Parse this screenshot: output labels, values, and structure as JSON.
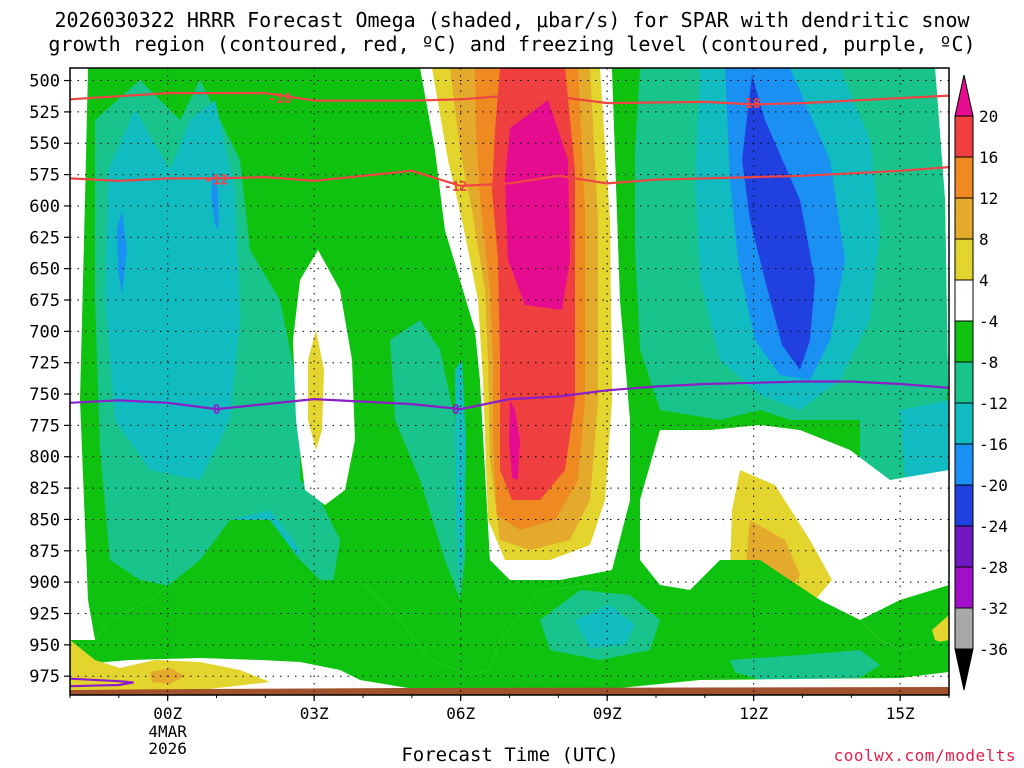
{
  "title_line1": "2026030322 HRRR Forecast Omega (shaded, μbar/s) for SPAR with dendritic snow",
  "title_line2": "growth region (contoured, red, ºC) and freezing level (contoured, purple, ºC)",
  "credit": "coolwx.com/modelts",
  "chart_data": {
    "type": "heatmap",
    "title": "2026030322 HRRR Forecast Omega (shaded, μbar/s) for SPAR with dendritic snow growth region (contoured, red, ºC) and freezing level (contoured, purple, ºC)",
    "xlabel": "Forecast Time (UTC)",
    "ylabel": "",
    "x_ticks": [
      {
        "label": "00Z",
        "sub": [
          "4MAR",
          "2026"
        ],
        "hour": 0
      },
      {
        "label": "03Z",
        "hour": 3
      },
      {
        "label": "06Z",
        "hour": 6
      },
      {
        "label": "09Z",
        "hour": 9
      },
      {
        "label": "12Z",
        "hour": 12
      },
      {
        "label": "15Z",
        "hour": 15
      }
    ],
    "xlim_hours": [
      -2,
      16
    ],
    "y_levels_hPa": [
      500,
      525,
      550,
      575,
      600,
      625,
      650,
      675,
      700,
      725,
      750,
      775,
      800,
      825,
      850,
      875,
      900,
      925,
      950,
      975
    ],
    "ylim_hPa": [
      490,
      990
    ],
    "grid": true,
    "colorbar": {
      "levels": [
        20,
        16,
        12,
        8,
        4,
        -4,
        -8,
        -12,
        -16,
        -20,
        -24,
        -28,
        -32,
        -36
      ],
      "colors": [
        "#e60c90",
        "#ef3f3f",
        "#ef8a22",
        "#e4aa2c",
        "#e4d42e",
        "#ffffff",
        "#0fc20f",
        "#18c48c",
        "#10bcc0",
        "#1a90f2",
        "#2040e0",
        "#7018c0",
        "#a010c8",
        "#a8a8a8",
        "#000000"
      ]
    },
    "contours": [
      {
        "name": "-18",
        "color": "#ef4444",
        "label_value": "-18",
        "points": [
          [
            -2,
            515
          ],
          [
            0,
            510
          ],
          [
            2,
            510
          ],
          [
            3,
            516
          ],
          [
            5,
            516
          ],
          [
            6,
            515
          ],
          [
            7,
            512
          ],
          [
            8,
            513
          ],
          [
            9,
            518
          ],
          [
            11,
            517
          ],
          [
            12,
            519
          ],
          [
            13,
            518
          ],
          [
            14,
            516
          ],
          [
            15,
            514
          ],
          [
            16,
            512
          ]
        ]
      },
      {
        "name": "-12",
        "color": "#ef4444",
        "label_value": "-12",
        "points": [
          [
            -2,
            578
          ],
          [
            -1,
            580
          ],
          [
            0,
            578
          ],
          [
            1,
            578
          ],
          [
            2,
            577
          ],
          [
            3,
            580
          ],
          [
            4,
            576
          ],
          [
            5,
            572
          ],
          [
            6,
            584
          ],
          [
            7,
            582
          ],
          [
            8,
            576
          ],
          [
            9,
            582
          ],
          [
            10,
            579
          ],
          [
            11,
            578
          ],
          [
            12,
            577
          ],
          [
            13,
            576
          ],
          [
            14,
            574
          ],
          [
            15,
            572
          ],
          [
            16,
            569
          ]
        ]
      },
      {
        "name": "0",
        "color": "#8a1ec8",
        "label_value": "0",
        "points": [
          [
            -2,
            757
          ],
          [
            -1,
            755
          ],
          [
            0,
            757
          ],
          [
            1,
            762
          ],
          [
            2,
            758
          ],
          [
            3,
            754
          ],
          [
            4,
            756
          ],
          [
            5,
            758
          ],
          [
            6,
            762
          ],
          [
            7,
            754
          ],
          [
            8,
            752
          ],
          [
            9,
            747
          ],
          [
            10,
            744
          ],
          [
            11,
            742
          ],
          [
            12,
            741
          ],
          [
            13,
            740
          ],
          [
            14,
            740
          ],
          [
            15,
            742
          ],
          [
            16,
            745
          ]
        ]
      },
      {
        "name": "0-near-surface",
        "color": "#8a1ec8",
        "label_value": "",
        "points": [
          [
            -2,
            977
          ],
          [
            -1,
            979
          ],
          [
            -0.7,
            980
          ],
          [
            -1,
            982
          ],
          [
            -2,
            983
          ]
        ]
      }
    ],
    "label_positions": [
      {
        "text": "-18",
        "hour": 2.3,
        "level": 514
      },
      {
        "text": "-18",
        "hour": 11.9,
        "level": 518
      },
      {
        "text": "-12",
        "hour": 1.0,
        "level": 579
      },
      {
        "text": "-12",
        "hour": 5.9,
        "level": 584
      },
      {
        "text": "0",
        "hour": 1.0,
        "level": 762
      },
      {
        "text": "0",
        "hour": 5.9,
        "level": 762
      }
    ]
  }
}
